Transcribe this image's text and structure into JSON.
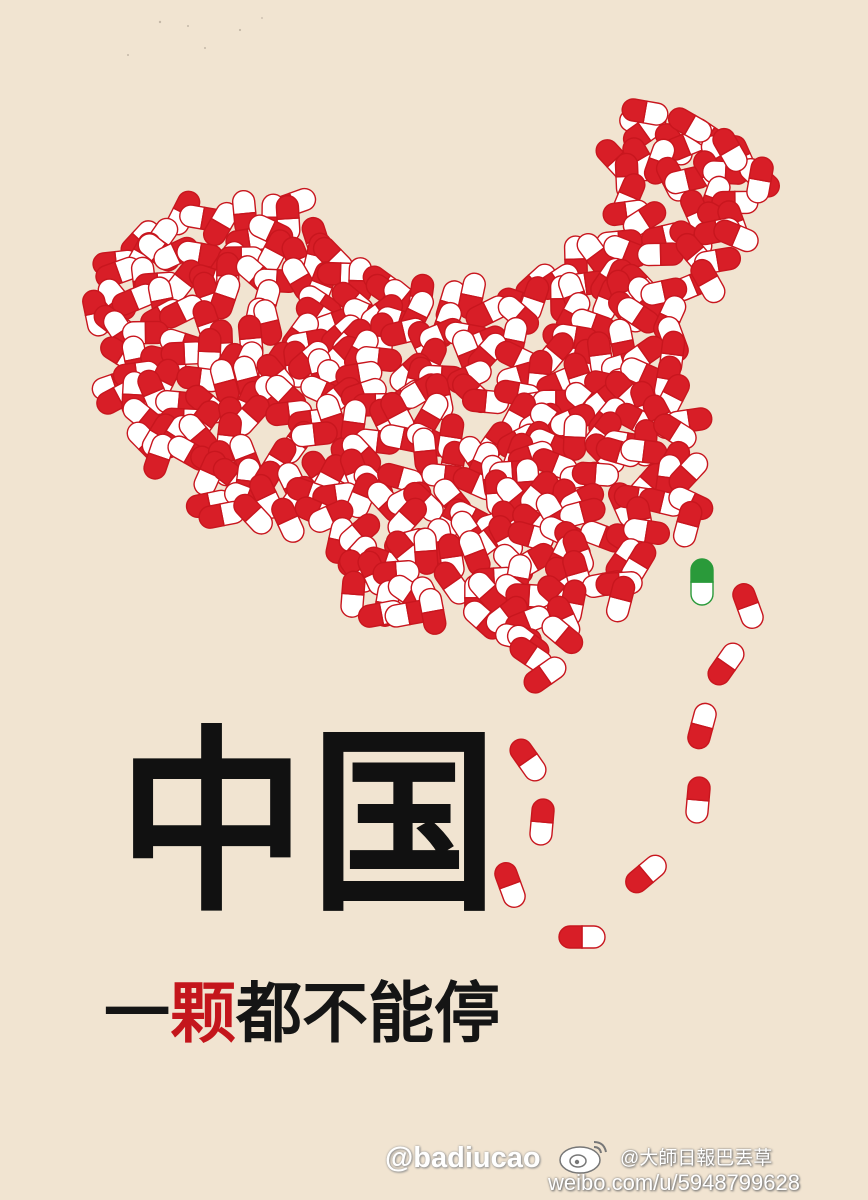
{
  "poster": {
    "title": "中国",
    "subtitle_prefix": "一",
    "subtitle_red": "颗",
    "subtitle_suffix": "都不能停",
    "artist_signature": "@badiucao",
    "weibo_handle": "@大師日報巴丟草",
    "weibo_url": "weibo.com/u/5948799628"
  },
  "palette": {
    "background": "#f1e4d1",
    "pill_red": "#d81e27",
    "pill_white": "#ffffff",
    "pill_outline": "#c8161e",
    "odd_pill_green": "#2a9a3a"
  },
  "icons": {
    "pills": "capsule-pill-icon",
    "odd_pill": "green-capsule-pill-icon",
    "weibo": "weibo-logo-icon"
  }
}
